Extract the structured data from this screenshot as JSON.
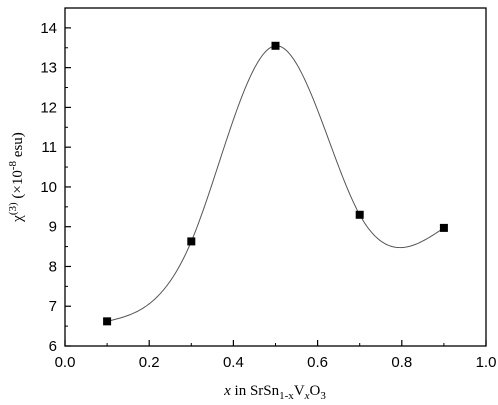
{
  "chart_data": {
    "type": "scatter",
    "title": "",
    "xlabel": {
      "var": "x",
      "mid": " in SrSn",
      "sub1": "1-x",
      "v": "V",
      "sub2": "x",
      "o": "O",
      "sub3": "3"
    },
    "ylabel": {
      "chi": "χ",
      "sup": "(3)",
      "rest1": " (×10",
      "sup2": "-8",
      "rest2": " esu)"
    },
    "xlim": [
      0.0,
      1.0
    ],
    "ylim": [
      6,
      14.5
    ],
    "x_ticks": [
      0.0,
      0.2,
      0.4,
      0.6,
      0.8,
      1.0
    ],
    "x_tick_labels": [
      "0.0",
      "0.2",
      "0.4",
      "0.6",
      "0.8",
      "1.0"
    ],
    "y_ticks": [
      6,
      7,
      8,
      9,
      10,
      11,
      12,
      13,
      14
    ],
    "y_tick_labels": [
      "6",
      "7",
      "8",
      "9",
      "10",
      "11",
      "12",
      "13",
      "14"
    ],
    "grid": false,
    "legend": "none",
    "marker": "square",
    "fit_curve": "smooth spline through points",
    "series": [
      {
        "x": [
          0.1,
          0.3,
          0.5,
          0.7,
          0.9
        ],
        "y": [
          6.62,
          8.63,
          13.55,
          9.3,
          8.97
        ]
      }
    ],
    "colors": {
      "marker": "#000000",
      "curve": "#555555",
      "axis": "#000000"
    }
  }
}
